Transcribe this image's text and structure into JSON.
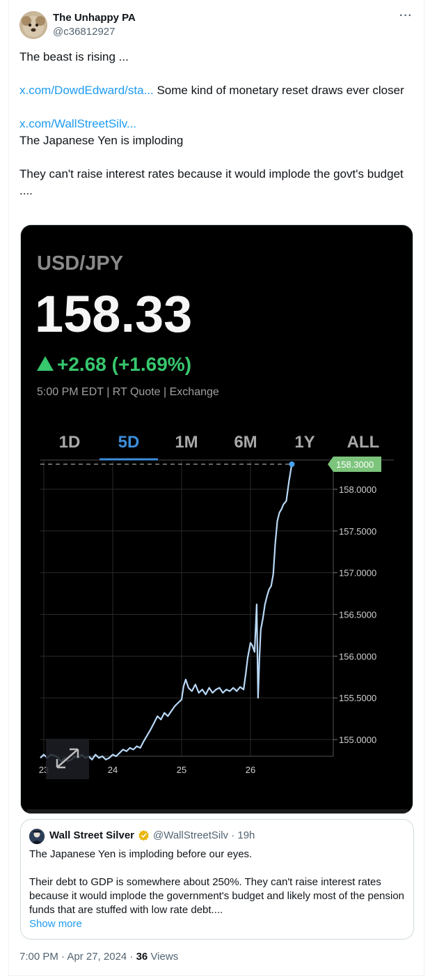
{
  "tweet": {
    "author_name": "The Unhappy PA",
    "author_handle": "@c36812927",
    "line1": "The beast is rising ...",
    "link1": "x.com/DowdEdward/sta...",
    "line2": " Some kind of monetary reset draws ever closer",
    "link2": "x.com/WallStreetSilv...",
    "line3": "The Japanese Yen is imploding",
    "line4": "They can't raise interest rates because it would implode the govt's budget ....",
    "more_icon": "ellipsis-icon"
  },
  "media": {
    "pair": "USD/JPY",
    "price": "158.33",
    "change": "+2.68 (+1.69%)",
    "change_color": "#37c76e",
    "quote_info": "5:00 PM EDT | RT Quote | Exchange",
    "ranges": [
      "1D",
      "5D",
      "1M",
      "6M",
      "1Y",
      "ALL"
    ],
    "active_range": "5D",
    "accent_color": "#3d8fdb",
    "last_price_label": "158.3000",
    "expand_icon": "expand-arrows-icon"
  },
  "chart_data": {
    "type": "line",
    "title": "",
    "xlabel": "",
    "ylabel": "",
    "x_ticks": [
      "23",
      "24",
      "25",
      "26"
    ],
    "y_ticks": [
      "158.0000",
      "157.5000",
      "157.0000",
      "156.5000",
      "156.0000",
      "155.5000",
      "155.0000"
    ],
    "ylim": [
      154.8,
      158.35
    ],
    "xlim": [
      22.95,
      27.0
    ],
    "grid": true,
    "series": [
      {
        "line_color": "#b9d9f7",
        "points": [
          [
            22.95,
            154.78
          ],
          [
            23.0,
            154.82
          ],
          [
            23.05,
            154.78
          ],
          [
            23.1,
            154.82
          ],
          [
            23.15,
            154.81
          ],
          [
            23.2,
            154.79
          ],
          [
            23.25,
            154.74
          ],
          [
            23.3,
            154.78
          ],
          [
            23.35,
            154.74
          ],
          [
            23.4,
            154.76
          ],
          [
            23.45,
            154.8
          ],
          [
            23.5,
            154.78
          ],
          [
            23.55,
            154.82
          ],
          [
            23.6,
            154.78
          ],
          [
            23.65,
            154.8
          ],
          [
            23.7,
            154.76
          ],
          [
            23.75,
            154.82
          ],
          [
            23.8,
            154.78
          ],
          [
            23.85,
            154.8
          ],
          [
            23.9,
            154.76
          ],
          [
            23.95,
            154.78
          ],
          [
            24.0,
            154.82
          ],
          [
            24.05,
            154.8
          ],
          [
            24.1,
            154.84
          ],
          [
            24.15,
            154.88
          ],
          [
            24.2,
            154.86
          ],
          [
            24.25,
            154.9
          ],
          [
            24.3,
            154.88
          ],
          [
            24.35,
            154.92
          ],
          [
            24.4,
            154.9
          ],
          [
            24.45,
            154.98
          ],
          [
            24.5,
            155.05
          ],
          [
            24.55,
            155.12
          ],
          [
            24.6,
            155.2
          ],
          [
            24.65,
            155.28
          ],
          [
            24.7,
            155.24
          ],
          [
            24.75,
            155.32
          ],
          [
            24.8,
            155.28
          ],
          [
            24.85,
            155.34
          ],
          [
            24.9,
            155.4
          ],
          [
            24.95,
            155.44
          ],
          [
            25.0,
            155.48
          ],
          [
            25.03,
            155.64
          ],
          [
            25.06,
            155.72
          ],
          [
            25.1,
            155.62
          ],
          [
            25.15,
            155.58
          ],
          [
            25.2,
            155.66
          ],
          [
            25.25,
            155.56
          ],
          [
            25.3,
            155.6
          ],
          [
            25.35,
            155.54
          ],
          [
            25.4,
            155.62
          ],
          [
            25.45,
            155.56
          ],
          [
            25.5,
            155.6
          ],
          [
            25.55,
            155.62
          ],
          [
            25.6,
            155.56
          ],
          [
            25.65,
            155.6
          ],
          [
            25.7,
            155.58
          ],
          [
            25.75,
            155.62
          ],
          [
            25.8,
            155.58
          ],
          [
            25.85,
            155.63
          ],
          [
            25.9,
            155.6
          ],
          [
            25.93,
            155.78
          ],
          [
            25.96,
            155.98
          ],
          [
            26.0,
            156.16
          ],
          [
            26.03,
            156.12
          ],
          [
            26.06,
            156.05
          ],
          [
            26.09,
            156.62
          ],
          [
            26.11,
            155.5
          ],
          [
            26.13,
            155.98
          ],
          [
            26.15,
            156.32
          ],
          [
            26.18,
            156.45
          ],
          [
            26.21,
            156.62
          ],
          [
            26.24,
            156.72
          ],
          [
            26.27,
            156.8
          ],
          [
            26.3,
            156.84
          ],
          [
            26.33,
            156.98
          ],
          [
            26.36,
            157.35
          ],
          [
            26.39,
            157.62
          ],
          [
            26.42,
            157.72
          ],
          [
            26.45,
            157.76
          ],
          [
            26.48,
            157.82
          ],
          [
            26.52,
            157.86
          ],
          [
            26.56,
            158.1
          ],
          [
            26.6,
            158.3
          ]
        ]
      }
    ]
  },
  "quote_tweet": {
    "author_name": "Wall Street Silver",
    "badge_icon": "verified-badge-icon",
    "handle_time": "@WallStreetSilv · 19h",
    "line1": "The Japanese Yen is imploding before our eyes.",
    "line2": "Their debt to GDP is somewhere about 250%. They can't raise interest rates because it would implode the government's budget and likely most of the pension funds that are stuffed with low rate debt....",
    "show_more": "Show more"
  },
  "footer": {
    "timestamp": "7:00 PM · Apr 27, 2024 · ",
    "views_count": "36",
    "views_label": " Views"
  }
}
